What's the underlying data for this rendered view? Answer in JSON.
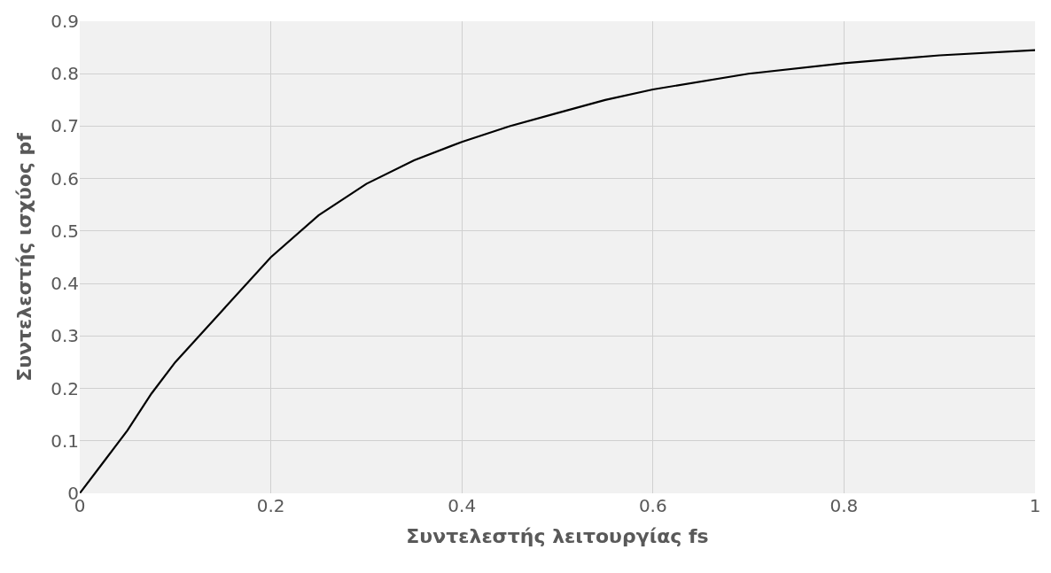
{
  "chart_data": {
    "type": "line",
    "xlabel": "Συντελεστής λειτουργίας fs",
    "ylabel": "Συντελεστής ισχύος pf",
    "x": [
      0,
      0.025,
      0.05,
      0.075,
      0.1,
      0.15,
      0.2,
      0.25,
      0.3,
      0.35,
      0.4,
      0.45,
      0.5,
      0.55,
      0.6,
      0.7,
      0.8,
      0.9,
      1.0
    ],
    "series": [
      {
        "color": "#000000",
        "values": [
          0,
          0.06,
          0.12,
          0.19,
          0.25,
          0.35,
          0.45,
          0.53,
          0.59,
          0.635,
          0.67,
          0.7,
          0.725,
          0.75,
          0.77,
          0.8,
          0.82,
          0.835,
          0.845
        ]
      }
    ],
    "xlim": [
      0,
      1
    ],
    "xticks": [
      0,
      0.2,
      0.4,
      0.6,
      0.8,
      1
    ],
    "ylim": [
      0,
      0.9
    ],
    "yticks": [
      0,
      0.1,
      0.2,
      0.3,
      0.4,
      0.5,
      0.6,
      0.7,
      0.8,
      0.9
    ],
    "grid": true,
    "marker": "none",
    "line_style": "solid"
  }
}
